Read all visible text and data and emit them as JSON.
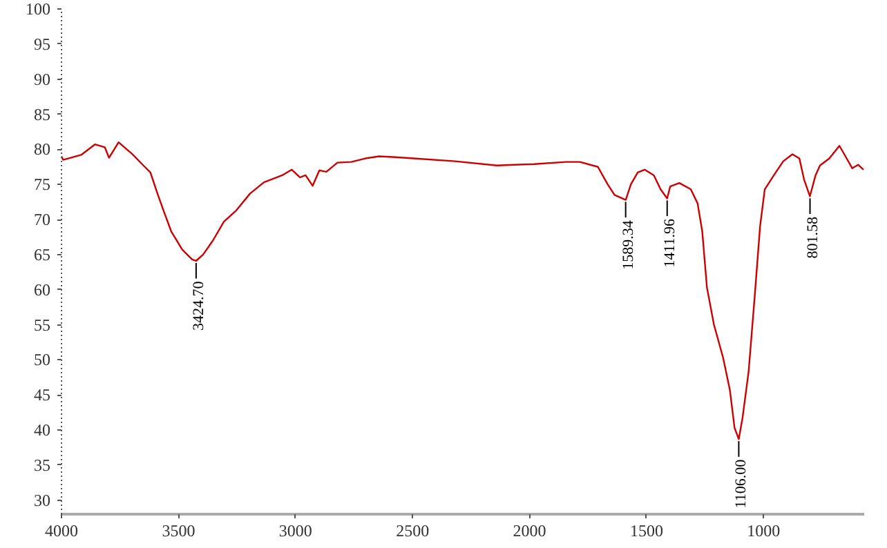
{
  "chart_data": {
    "type": "line",
    "x": [
      4000,
      3993,
      3916,
      3857,
      3815,
      3797,
      3756,
      3697,
      3650,
      3620,
      3590,
      3561,
      3531,
      3484,
      3442,
      3425,
      3395,
      3353,
      3306,
      3253,
      3194,
      3135,
      3057,
      3016,
      2981,
      2957,
      2927,
      2898,
      2868,
      2821,
      2762,
      2702,
      2643,
      2584,
      2495,
      2318,
      2140,
      1980,
      1844,
      1785,
      1708,
      1666,
      1637,
      1589,
      1567,
      1538,
      1508,
      1469,
      1440,
      1412,
      1399,
      1360,
      1311,
      1282,
      1262,
      1242,
      1212,
      1173,
      1144,
      1124,
      1106,
      1090,
      1064,
      1038,
      1015,
      995,
      956,
      916,
      877,
      847,
      827,
      802,
      778,
      759,
      719,
      676,
      650,
      621,
      596,
      573
    ],
    "series": [
      {
        "color": "#cc0000",
        "values": [
          79.0,
          78.5,
          79.2,
          80.7,
          80.3,
          78.8,
          81.0,
          79.3,
          77.7,
          76.7,
          73.7,
          71.0,
          68.3,
          65.7,
          64.3,
          64.1,
          65.0,
          67.0,
          69.7,
          71.3,
          73.7,
          75.3,
          76.3,
          77.1,
          76.0,
          76.3,
          74.8,
          77.0,
          76.8,
          78.1,
          78.2,
          78.7,
          79.0,
          78.9,
          78.7,
          78.3,
          77.7,
          77.9,
          78.2,
          78.2,
          77.5,
          75.0,
          73.5,
          72.8,
          75.0,
          76.7,
          77.1,
          76.3,
          74.3,
          73.0,
          74.7,
          75.2,
          74.3,
          72.3,
          68.3,
          60.3,
          55.0,
          50.3,
          45.7,
          40.3,
          38.7,
          41.7,
          48.3,
          59.0,
          69.0,
          74.3,
          76.3,
          78.3,
          79.3,
          78.7,
          75.7,
          73.3,
          76.3,
          77.7,
          78.7,
          80.5,
          79.0,
          77.3,
          77.8,
          77.1
        ]
      }
    ],
    "xlim": [
      4000,
      570
    ],
    "ylim": [
      28,
      100
    ],
    "xticks": [
      4000,
      3500,
      3000,
      2500,
      2000,
      1500,
      1000
    ],
    "yticks": [
      30,
      35,
      40,
      45,
      50,
      55,
      60,
      65,
      70,
      75,
      80,
      85,
      90,
      95,
      100
    ],
    "grid": false,
    "marker": "none",
    "line_style": "solid",
    "annotations": [
      {
        "text": "3424.70",
        "x": 3424.7,
        "y": 64.1
      },
      {
        "text": "1589.34",
        "x": 1589.34,
        "y": 72.8
      },
      {
        "text": "1411.96",
        "x": 1411.96,
        "y": 73.0
      },
      {
        "text": "1106.00",
        "x": 1106.0,
        "y": 38.7
      },
      {
        "text": "801.58",
        "x": 801.58,
        "y": 73.3
      }
    ]
  }
}
